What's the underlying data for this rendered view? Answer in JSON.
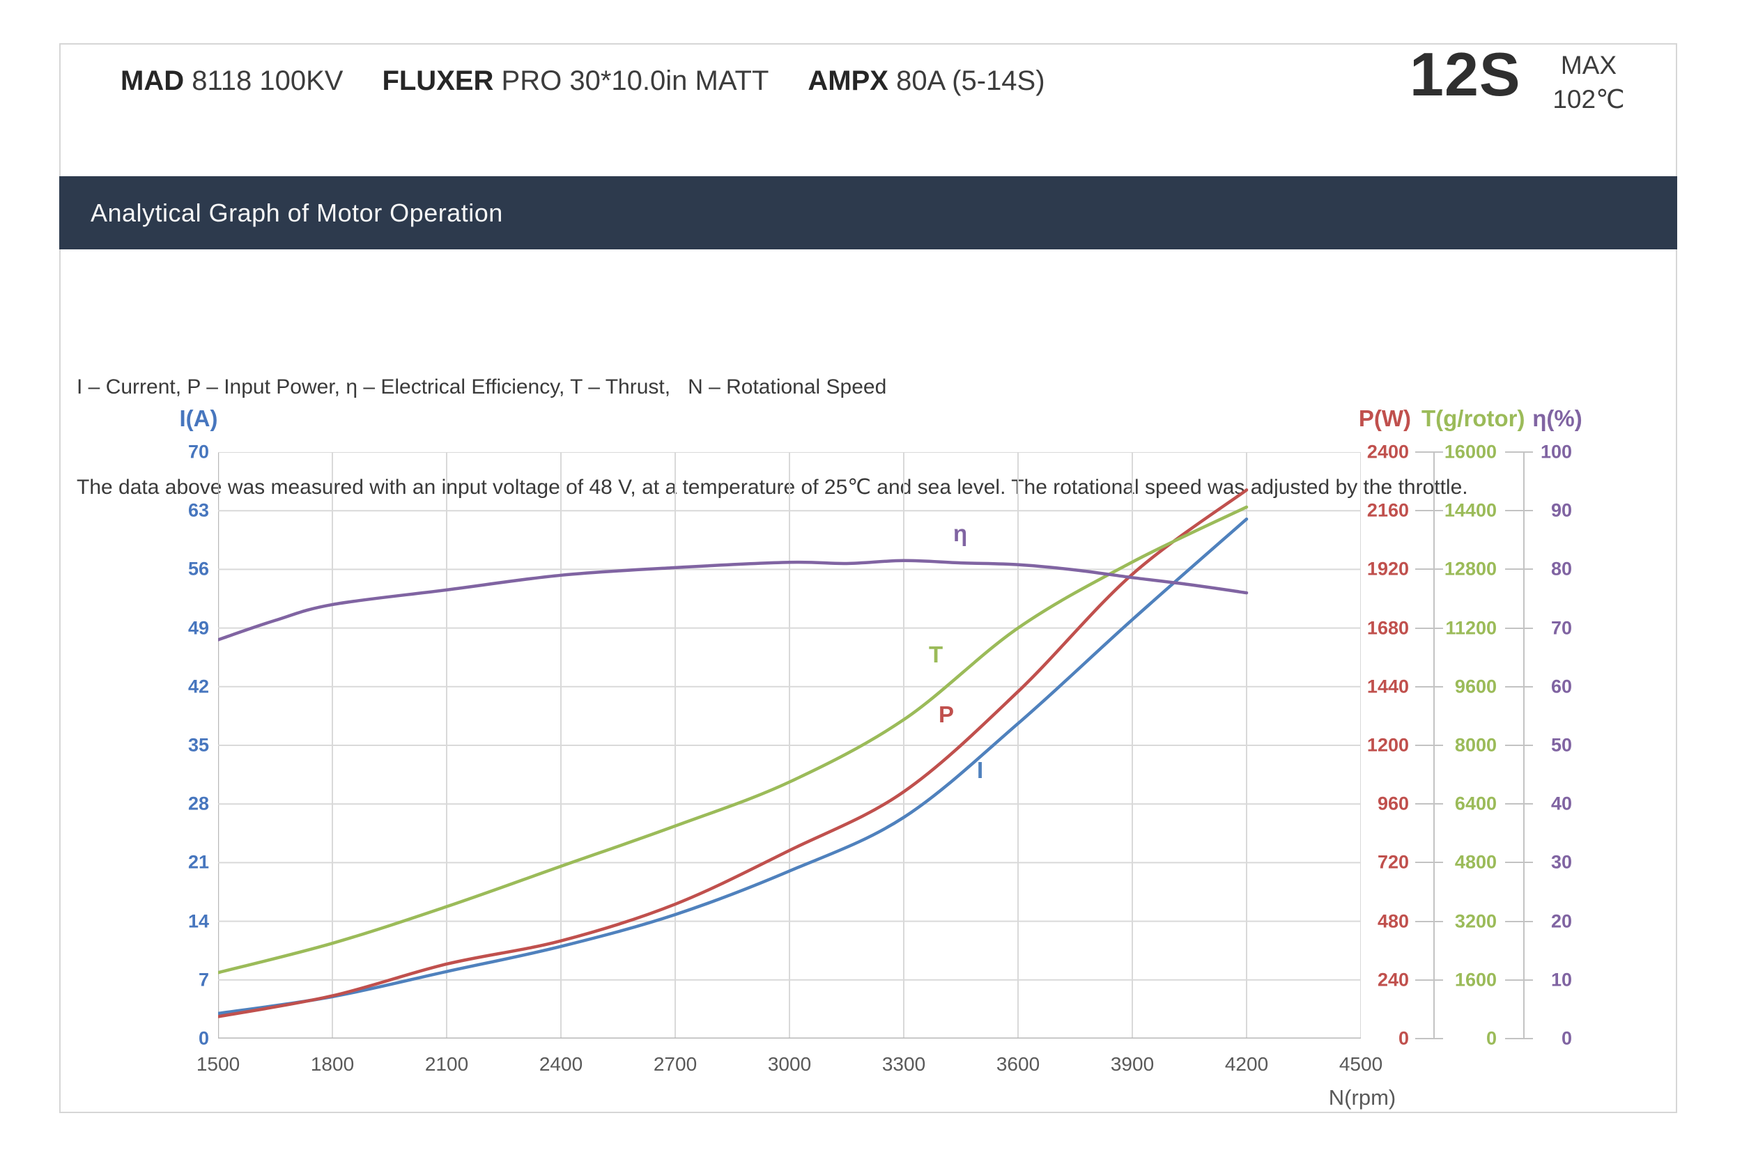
{
  "header": {
    "specs": [
      {
        "brand": "MAD",
        "rest": "8118 100KV"
      },
      {
        "brand": "FLUXER",
        "rest": "PRO 30*10.0in MATT"
      },
      {
        "brand": "AMPX",
        "rest": "80A (5-14S)"
      }
    ],
    "battery": "12S",
    "max_label": "MAX",
    "max_temp": "102℃"
  },
  "banner": {
    "title": "Analytical Graph of Motor Operation",
    "bg_color": "#2d3a4d"
  },
  "description": {
    "line1": "I – Current, P – Input Power, η – Electrical Efficiency, T – Thrust,   N – Rotational Speed",
    "line2": "The data above was measured with an input voltage of 48 V, at a temperature of 25℃ and sea level. The rotational speed was adjusted by the throttle."
  },
  "colors": {
    "current_blue": "#4F81BD",
    "power_red": "#C0504D",
    "thrust_green": "#9BBB59",
    "efficiency_purple": "#8064A2",
    "axis_label_blue": "#4776be",
    "grid": "#d9d9d9",
    "axis_line": "#b9b9b9",
    "x_text": "#595959"
  },
  "chart_data": {
    "type": "line",
    "grid": true,
    "x_axis": {
      "title": "N(rpm)",
      "min": 1500,
      "max": 4500,
      "ticks": [
        1500,
        1800,
        2100,
        2400,
        2700,
        3000,
        3300,
        3600,
        3900,
        4200,
        4500
      ]
    },
    "y_axes": [
      {
        "id": "I",
        "title": "I(A)",
        "side": "left",
        "min": 0,
        "max": 70,
        "ticks": [
          70,
          63,
          56,
          49,
          42,
          35,
          28,
          21,
          14,
          7,
          0
        ]
      },
      {
        "id": "P",
        "title": "P(W)",
        "side": "right",
        "min": 0,
        "max": 2400,
        "ticks": [
          2400,
          2160,
          1920,
          1680,
          1440,
          1200,
          960,
          720,
          480,
          240,
          0
        ]
      },
      {
        "id": "T",
        "title": "T(g/rotor)",
        "side": "right",
        "min": 0,
        "max": 16000,
        "ticks": [
          16000,
          14400,
          12800,
          11200,
          9600,
          8000,
          6400,
          4800,
          3200,
          1600,
          0
        ]
      },
      {
        "id": "eta",
        "title": "η(%)",
        "side": "right",
        "min": 0,
        "max": 100,
        "ticks": [
          100,
          90,
          80,
          70,
          60,
          50,
          40,
          30,
          20,
          10,
          0
        ]
      }
    ],
    "series": [
      {
        "name": "I",
        "axis": "I",
        "unit": "A",
        "color_key": "current_blue",
        "points": [
          [
            1500,
            3.0
          ],
          [
            1800,
            5.0
          ],
          [
            2100,
            8.0
          ],
          [
            2400,
            11.0
          ],
          [
            2700,
            14.8
          ],
          [
            3000,
            20.0
          ],
          [
            3300,
            26.4
          ],
          [
            3600,
            37.6
          ],
          [
            3900,
            50.0
          ],
          [
            4200,
            62.0
          ]
        ]
      },
      {
        "name": "P",
        "axis": "P",
        "unit": "W",
        "color_key": "power_red",
        "points": [
          [
            1500,
            90
          ],
          [
            1800,
            175
          ],
          [
            2100,
            305
          ],
          [
            2400,
            400
          ],
          [
            2700,
            550
          ],
          [
            3000,
            770
          ],
          [
            3300,
            1010
          ],
          [
            3600,
            1420
          ],
          [
            3900,
            1900
          ],
          [
            4200,
            2245
          ]
        ]
      },
      {
        "name": "T",
        "axis": "T",
        "unit": "g/rotor",
        "color_key": "thrust_green",
        "points": [
          [
            1500,
            1800
          ],
          [
            1800,
            2600
          ],
          [
            2100,
            3600
          ],
          [
            2400,
            4700
          ],
          [
            2700,
            5800
          ],
          [
            3000,
            7000
          ],
          [
            3300,
            8700
          ],
          [
            3600,
            11200
          ],
          [
            3900,
            13000
          ],
          [
            4200,
            14500
          ]
        ]
      },
      {
        "name": "η",
        "axis": "eta",
        "unit": "%",
        "color_key": "efficiency_purple",
        "points": [
          [
            1500,
            68
          ],
          [
            1650,
            71.3
          ],
          [
            1800,
            74
          ],
          [
            2100,
            76.5
          ],
          [
            2400,
            79
          ],
          [
            2700,
            80.3
          ],
          [
            3000,
            81.2
          ],
          [
            3150,
            81.0
          ],
          [
            3300,
            81.5
          ],
          [
            3450,
            81.1
          ],
          [
            3600,
            80.8
          ],
          [
            3750,
            79.9
          ],
          [
            3900,
            78.6
          ],
          [
            4050,
            77.4
          ],
          [
            4200,
            76.0
          ]
        ]
      }
    ],
    "curve_labels": [
      {
        "text": "η",
        "color_key": "efficiency_purple",
        "x": 1055,
        "y": 98
      },
      {
        "text": "T",
        "color_key": "thrust_green",
        "x": 1020,
        "y": 272
      },
      {
        "text": "P",
        "color_key": "power_red",
        "x": 1034,
        "y": 358
      },
      {
        "text": "I",
        "color_key": "current_blue",
        "x": 1089,
        "y": 438
      }
    ]
  }
}
